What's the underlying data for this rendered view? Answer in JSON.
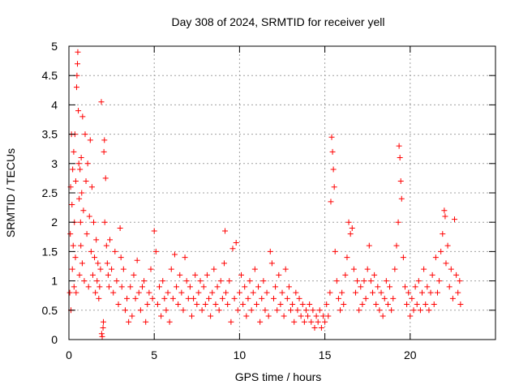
{
  "chart_data": {
    "type": "scatter",
    "title": "Day 308 of 2024, SRMTID for receiver yell",
    "xlabel": "GPS time / hours",
    "ylabel": "SRMTID / TECUs",
    "xlim": [
      0,
      25
    ],
    "ylim": [
      0,
      5
    ],
    "xticks": [
      0,
      5,
      10,
      15,
      20
    ],
    "yticks": [
      0,
      0.5,
      1,
      1.5,
      2,
      2.5,
      3,
      3.5,
      4,
      4.5,
      5
    ],
    "xtick_labels": [
      "0",
      "5",
      "10",
      "15",
      "20"
    ],
    "ytick_labels": [
      "0",
      "0.5",
      "1",
      "1.5",
      "2",
      "2.5",
      "3",
      "3.5",
      "4",
      "4.5",
      "5"
    ],
    "grid": true,
    "marker": "+",
    "color": "#ff0000",
    "series": [
      {
        "name": "SRMTID",
        "points": [
          [
            0.05,
            0.8
          ],
          [
            0.08,
            1.8
          ],
          [
            0.1,
            2.6
          ],
          [
            0.12,
            0.5
          ],
          [
            0.15,
            3.5
          ],
          [
            0.18,
            2.3
          ],
          [
            0.2,
            1.2
          ],
          [
            0.22,
            2.9
          ],
          [
            0.25,
            1.6
          ],
          [
            0.28,
            3.2
          ],
          [
            0.3,
            0.9
          ],
          [
            0.32,
            2.0
          ],
          [
            0.35,
            3.5
          ],
          [
            0.38,
            1.4
          ],
          [
            0.4,
            2.7
          ],
          [
            0.42,
            0.8
          ],
          [
            0.45,
            4.3
          ],
          [
            0.47,
            4.5
          ],
          [
            0.5,
            4.7
          ],
          [
            0.52,
            4.9
          ],
          [
            0.55,
            3.9
          ],
          [
            0.58,
            3.0
          ],
          [
            0.6,
            2.4
          ],
          [
            0.62,
            1.1
          ],
          [
            0.65,
            2.9
          ],
          [
            0.68,
            2.0
          ],
          [
            0.7,
            1.6
          ],
          [
            0.72,
            3.1
          ],
          [
            0.75,
            2.5
          ],
          [
            0.78,
            1.3
          ],
          [
            0.8,
            3.8
          ],
          [
            0.85,
            2.2
          ],
          [
            0.9,
            1.0
          ],
          [
            0.95,
            3.5
          ],
          [
            1.0,
            2.7
          ],
          [
            1.05,
            1.8
          ],
          [
            1.1,
            3.0
          ],
          [
            1.15,
            0.9
          ],
          [
            1.2,
            2.1
          ],
          [
            1.25,
            3.4
          ],
          [
            1.3,
            1.5
          ],
          [
            1.35,
            2.6
          ],
          [
            1.4,
            1.1
          ],
          [
            1.45,
            2.0
          ],
          [
            1.5,
            1.4
          ],
          [
            1.55,
            0.8
          ],
          [
            1.6,
            1.7
          ],
          [
            1.65,
            1.0
          ],
          [
            1.7,
            1.3
          ],
          [
            1.75,
            0.7
          ],
          [
            1.8,
            0.9
          ],
          [
            1.85,
            1.2
          ],
          [
            1.9,
            4.05
          ],
          [
            1.92,
            0.1
          ],
          [
            1.95,
            0.05
          ],
          [
            2.0,
            0.2
          ],
          [
            2.02,
            0.3
          ],
          [
            2.05,
            3.2
          ],
          [
            2.08,
            3.4
          ],
          [
            2.1,
            2.0
          ],
          [
            2.15,
            2.75
          ],
          [
            2.2,
            1.6
          ],
          [
            2.25,
            1.3
          ],
          [
            2.3,
            1.1
          ],
          [
            2.35,
            0.9
          ],
          [
            2.4,
            1.7
          ],
          [
            2.5,
            1.2
          ],
          [
            2.6,
            0.8
          ],
          [
            2.7,
            1.5
          ],
          [
            2.8,
            1.0
          ],
          [
            2.9,
            0.6
          ],
          [
            3.0,
            1.9
          ],
          [
            3.05,
            1.4
          ],
          [
            3.1,
            0.9
          ],
          [
            3.2,
            1.2
          ],
          [
            3.3,
            0.5
          ],
          [
            3.4,
            0.7
          ],
          [
            3.5,
            0.3
          ],
          [
            3.6,
            0.9
          ],
          [
            3.7,
            0.4
          ],
          [
            3.8,
            1.1
          ],
          [
            3.9,
            0.7
          ],
          [
            4.0,
            1.35
          ],
          [
            4.1,
            0.8
          ],
          [
            4.2,
            0.5
          ],
          [
            4.3,
            0.9
          ],
          [
            4.4,
            1.0
          ],
          [
            4.5,
            0.3
          ],
          [
            4.6,
            0.6
          ],
          [
            4.7,
            0.8
          ],
          [
            4.8,
            1.2
          ],
          [
            4.9,
            0.7
          ],
          [
            5.0,
            1.85
          ],
          [
            5.1,
            1.5
          ],
          [
            5.2,
            0.6
          ],
          [
            5.3,
            0.9
          ],
          [
            5.4,
            0.4
          ],
          [
            5.5,
            1.0
          ],
          [
            5.6,
            0.7
          ],
          [
            5.7,
            0.5
          ],
          [
            5.8,
            0.8
          ],
          [
            5.9,
            0.3
          ],
          [
            6.0,
            1.2
          ],
          [
            6.1,
            0.7
          ],
          [
            6.2,
            1.45
          ],
          [
            6.3,
            0.9
          ],
          [
            6.4,
            0.6
          ],
          [
            6.5,
            1.1
          ],
          [
            6.6,
            0.8
          ],
          [
            6.7,
            0.5
          ],
          [
            6.8,
            1.4
          ],
          [
            6.9,
            1.0
          ],
          [
            7.0,
            0.7
          ],
          [
            7.1,
            0.9
          ],
          [
            7.2,
            0.4
          ],
          [
            7.3,
            0.7
          ],
          [
            7.4,
            1.1
          ],
          [
            7.5,
            0.6
          ],
          [
            7.6,
            0.8
          ],
          [
            7.7,
            1.0
          ],
          [
            7.8,
            0.5
          ],
          [
            7.9,
            0.9
          ],
          [
            8.0,
            0.6
          ],
          [
            8.1,
            1.1
          ],
          [
            8.2,
            0.7
          ],
          [
            8.3,
            0.4
          ],
          [
            8.4,
            0.8
          ],
          [
            8.5,
            1.2
          ],
          [
            8.6,
            0.6
          ],
          [
            8.7,
            0.9
          ],
          [
            8.8,
            0.5
          ],
          [
            8.9,
            1.0
          ],
          [
            9.0,
            0.7
          ],
          [
            9.1,
            1.3
          ],
          [
            9.15,
            1.85
          ],
          [
            9.2,
            0.8
          ],
          [
            9.3,
            0.6
          ],
          [
            9.4,
            1.0
          ],
          [
            9.5,
            0.3
          ],
          [
            9.6,
            1.55
          ],
          [
            9.7,
            0.7
          ],
          [
            9.8,
            1.65
          ],
          [
            9.9,
            0.5
          ],
          [
            10.0,
            0.8
          ],
          [
            10.1,
            1.1
          ],
          [
            10.2,
            0.6
          ],
          [
            10.3,
            0.9
          ],
          [
            10.4,
            0.4
          ],
          [
            10.5,
            0.7
          ],
          [
            10.6,
            1.0
          ],
          [
            10.7,
            0.5
          ],
          [
            10.8,
            0.8
          ],
          [
            10.9,
            1.2
          ],
          [
            11.0,
            0.6
          ],
          [
            11.1,
            0.9
          ],
          [
            11.2,
            0.3
          ],
          [
            11.3,
            0.7
          ],
          [
            11.4,
            1.0
          ],
          [
            11.5,
            0.5
          ],
          [
            11.6,
            0.8
          ],
          [
            11.7,
            0.4
          ],
          [
            11.8,
            1.5
          ],
          [
            11.9,
            1.3
          ],
          [
            12.0,
            0.7
          ],
          [
            12.1,
            0.9
          ],
          [
            12.2,
            0.5
          ],
          [
            12.3,
            1.1
          ],
          [
            12.4,
            0.6
          ],
          [
            12.5,
            0.8
          ],
          [
            12.6,
            0.4
          ],
          [
            12.7,
            1.2
          ],
          [
            12.8,
            0.7
          ],
          [
            12.9,
            0.9
          ],
          [
            13.0,
            0.5
          ],
          [
            13.1,
            0.6
          ],
          [
            13.2,
            0.3
          ],
          [
            13.3,
            0.8
          ],
          [
            13.4,
            0.5
          ],
          [
            13.5,
            0.7
          ],
          [
            13.6,
            0.4
          ],
          [
            13.7,
            0.6
          ],
          [
            13.8,
            0.3
          ],
          [
            13.9,
            0.5
          ],
          [
            14.0,
            0.4
          ],
          [
            14.1,
            0.6
          ],
          [
            14.2,
            0.3
          ],
          [
            14.3,
            0.5
          ],
          [
            14.4,
            0.2
          ],
          [
            14.5,
            0.4
          ],
          [
            14.6,
            0.3
          ],
          [
            14.7,
            0.5
          ],
          [
            14.8,
            0.2
          ],
          [
            14.9,
            0.4
          ],
          [
            15.0,
            0.3
          ],
          [
            15.1,
            0.6
          ],
          [
            15.2,
            0.4
          ],
          [
            15.3,
            0.8
          ],
          [
            15.35,
            2.35
          ],
          [
            15.4,
            3.45
          ],
          [
            15.45,
            3.2
          ],
          [
            15.5,
            2.9
          ],
          [
            15.55,
            2.6
          ],
          [
            15.6,
            1.5
          ],
          [
            15.7,
            1.0
          ],
          [
            15.8,
            0.7
          ],
          [
            15.9,
            0.5
          ],
          [
            16.0,
            0.8
          ],
          [
            16.1,
            0.6
          ],
          [
            16.2,
            1.1
          ],
          [
            16.3,
            1.4
          ],
          [
            16.4,
            2.0
          ],
          [
            16.5,
            1.8
          ],
          [
            16.6,
            1.9
          ],
          [
            16.7,
            1.2
          ],
          [
            16.8,
            0.8
          ],
          [
            16.9,
            1.0
          ],
          [
            17.0,
            0.5
          ],
          [
            17.1,
            0.9
          ],
          [
            17.2,
            0.6
          ],
          [
            17.3,
            1.0
          ],
          [
            17.4,
            0.7
          ],
          [
            17.5,
            1.2
          ],
          [
            17.6,
            1.6
          ],
          [
            17.7,
            1.0
          ],
          [
            17.8,
            0.8
          ],
          [
            17.9,
            1.1
          ],
          [
            18.0,
            0.6
          ],
          [
            18.1,
            0.9
          ],
          [
            18.2,
            0.5
          ],
          [
            18.3,
            0.8
          ],
          [
            18.4,
            0.4
          ],
          [
            18.5,
            0.7
          ],
          [
            18.6,
            1.0
          ],
          [
            18.7,
            0.6
          ],
          [
            18.8,
            0.9
          ],
          [
            18.9,
            0.5
          ],
          [
            19.0,
            0.7
          ],
          [
            19.1,
            1.2
          ],
          [
            19.2,
            1.6
          ],
          [
            19.3,
            2.0
          ],
          [
            19.35,
            3.3
          ],
          [
            19.4,
            3.1
          ],
          [
            19.45,
            2.7
          ],
          [
            19.5,
            2.4
          ],
          [
            19.6,
            1.4
          ],
          [
            19.7,
            0.9
          ],
          [
            19.8,
            0.6
          ],
          [
            19.9,
            0.8
          ],
          [
            20.0,
            0.4
          ],
          [
            20.1,
            0.7
          ],
          [
            20.2,
            0.5
          ],
          [
            20.3,
            0.9
          ],
          [
            20.4,
            0.6
          ],
          [
            20.5,
            1.0
          ],
          [
            20.6,
            0.5
          ],
          [
            20.7,
            0.8
          ],
          [
            20.8,
            1.2
          ],
          [
            20.9,
            0.6
          ],
          [
            21.0,
            0.9
          ],
          [
            21.1,
            0.5
          ],
          [
            21.2,
            0.8
          ],
          [
            21.3,
            1.1
          ],
          [
            21.4,
            0.6
          ],
          [
            21.5,
            1.4
          ],
          [
            21.6,
            0.8
          ],
          [
            21.7,
            1.0
          ],
          [
            21.8,
            1.5
          ],
          [
            21.9,
            1.8
          ],
          [
            22.0,
            2.2
          ],
          [
            22.05,
            2.1
          ],
          [
            22.1,
            1.3
          ],
          [
            22.2,
            1.6
          ],
          [
            22.3,
            0.9
          ],
          [
            22.4,
            1.2
          ],
          [
            22.5,
            0.7
          ],
          [
            22.6,
            2.05
          ],
          [
            22.7,
            1.1
          ],
          [
            22.8,
            0.8
          ],
          [
            22.9,
            1.0
          ],
          [
            22.95,
            0.6
          ]
        ]
      }
    ]
  }
}
